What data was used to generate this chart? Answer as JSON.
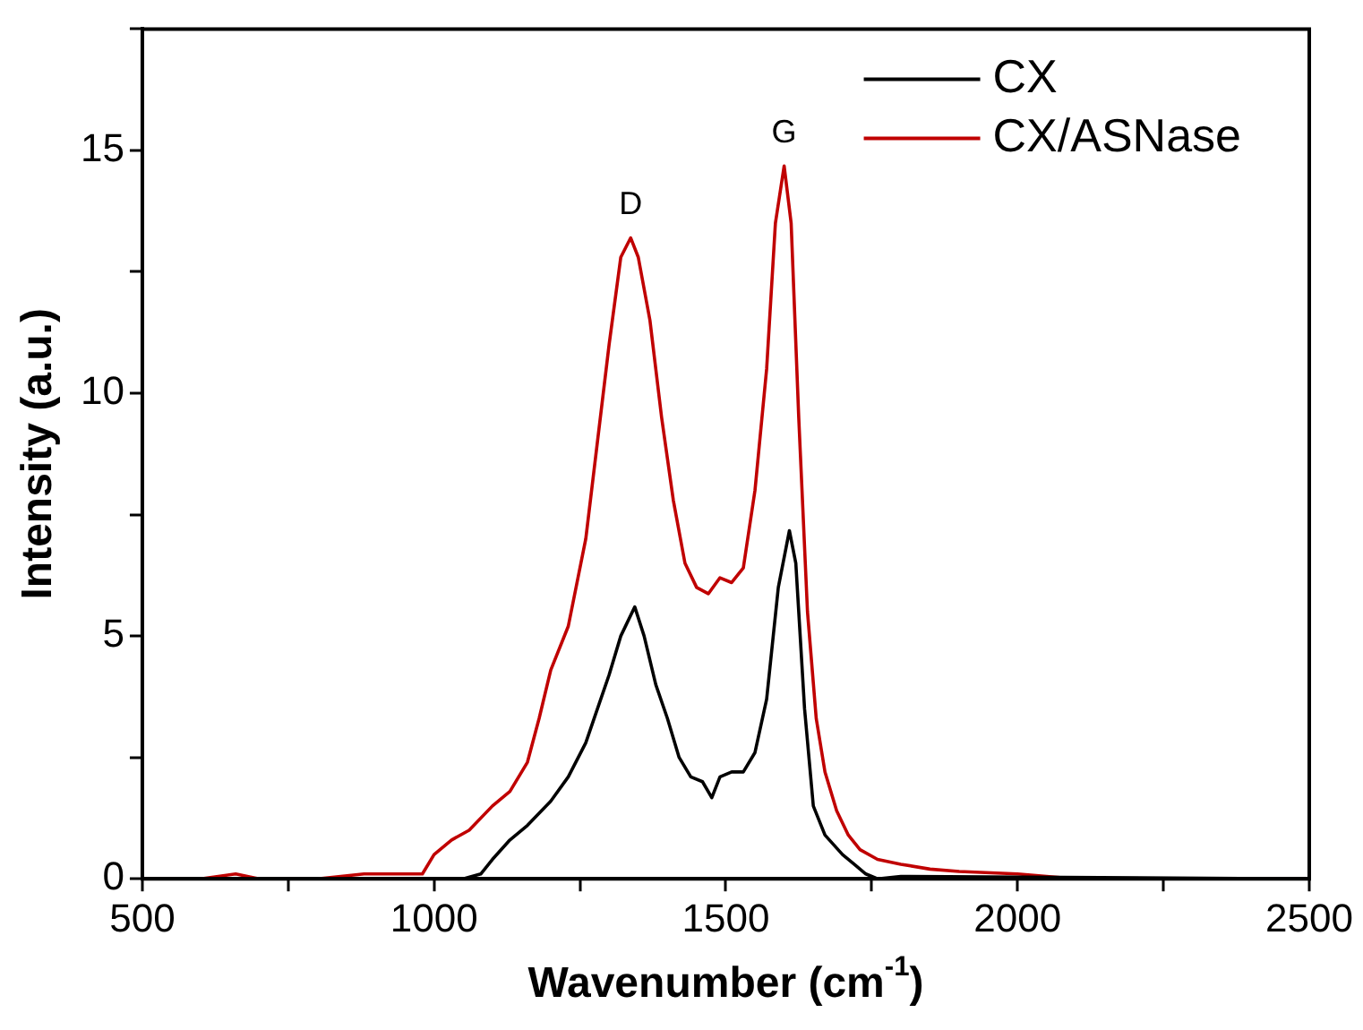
{
  "chart_data": {
    "type": "line",
    "xlabel": "Wavenumber (cm$^{-1}$)",
    "ylabel": "Intensity (a.u.)",
    "xlim": [
      500,
      2500
    ],
    "ylim": [
      0,
      17.5
    ],
    "xticks": [
      500,
      {
        "value": 750,
        "label": null
      },
      1000,
      {
        "value": 1250,
        "label": null
      },
      1500,
      {
        "value": 1750,
        "label": null
      },
      2000,
      {
        "value": 2250,
        "label": null
      },
      2500
    ],
    "yticks": [
      0,
      {
        "value": 2.5,
        "label": null
      },
      5,
      {
        "value": 7.5,
        "label": null
      },
      10,
      {
        "value": 12.5,
        "label": null
      },
      15,
      {
        "value": 17.5,
        "label": null
      }
    ],
    "grid": false,
    "legend": "top right",
    "marker": "none",
    "line_style": "solid",
    "annotations": [
      {
        "text": "D",
        "x": 1337,
        "y": 13.2
      },
      {
        "text": "G",
        "x": 1600,
        "y": 14.68
      }
    ],
    "series": [
      {
        "name": "CX",
        "color": "#000000",
        "x": [
          500,
          1000,
          1050,
          1080,
          1100,
          1130,
          1160,
          1200,
          1230,
          1260,
          1280,
          1300,
          1320,
          1344,
          1360,
          1380,
          1400,
          1420,
          1440,
          1460,
          1476,
          1490,
          1510,
          1530,
          1550,
          1570,
          1590,
          1609,
          1620,
          1635,
          1650,
          1670,
          1700,
          1720,
          1740,
          1760,
          1800,
          2500
        ],
        "values": [
          0,
          0,
          0,
          0.1,
          0.4,
          0.8,
          1.1,
          1.6,
          2.1,
          2.8,
          3.5,
          4.2,
          5.0,
          5.6,
          5.0,
          4.0,
          3.3,
          2.5,
          2.1,
          2.0,
          1.67,
          2.1,
          2.2,
          2.2,
          2.6,
          3.7,
          6.0,
          7.17,
          6.5,
          3.5,
          1.5,
          0.9,
          0.5,
          0.3,
          0.1,
          0,
          0.05,
          0
        ]
      },
      {
        "name": "CX/ASNase",
        "color": "#c00000",
        "x": [
          500,
          600,
          660,
          700,
          800,
          880,
          950,
          980,
          1000,
          1030,
          1060,
          1100,
          1130,
          1160,
          1180,
          1200,
          1230,
          1260,
          1280,
          1300,
          1320,
          1337,
          1350,
          1370,
          1390,
          1410,
          1430,
          1450,
          1470,
          1490,
          1510,
          1530,
          1550,
          1570,
          1585,
          1600,
          1612,
          1625,
          1640,
          1655,
          1670,
          1690,
          1710,
          1730,
          1760,
          1800,
          1850,
          1900,
          2000,
          2050,
          2100,
          2500
        ],
        "values": [
          0,
          0,
          0.1,
          0,
          0,
          0.1,
          0.1,
          0.1,
          0.5,
          0.8,
          1.0,
          1.5,
          1.8,
          2.4,
          3.3,
          4.3,
          5.2,
          7.0,
          9.0,
          11.0,
          12.8,
          13.2,
          12.8,
          11.5,
          9.5,
          7.8,
          6.5,
          6.0,
          5.87,
          6.2,
          6.1,
          6.4,
          8.0,
          10.5,
          13.5,
          14.68,
          13.5,
          9.5,
          5.5,
          3.3,
          2.2,
          1.4,
          0.9,
          0.6,
          0.4,
          0.3,
          0.2,
          0.15,
          0.1,
          0.05,
          0,
          0
        ]
      }
    ]
  }
}
